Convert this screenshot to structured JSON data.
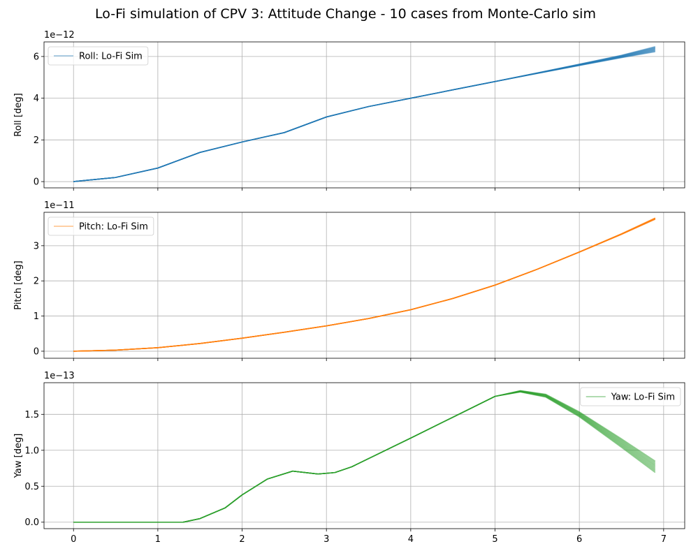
{
  "figure": {
    "title": "Lo-Fi simulation of CPV 3: Attitude Change - 10 cases from Monte-Carlo sim"
  },
  "chart_data": [
    {
      "type": "line",
      "title": "",
      "xlabel": "",
      "ylabel": "Roll [deg]",
      "exponent_label": "1e−12",
      "scale": 1e-12,
      "xlim": [
        -0.35,
        7.25
      ],
      "ylim": [
        -0.3,
        6.7
      ],
      "xticks": [
        0,
        1,
        2,
        3,
        4,
        5,
        6,
        7
      ],
      "xtick_labels_visible": false,
      "yticks": [
        0,
        2,
        4,
        6
      ],
      "grid": true,
      "legend": {
        "placement": "top-left",
        "entries": [
          "Roll: Lo-Fi Sim"
        ]
      },
      "color": "#1f77b4",
      "series": [
        {
          "name": "Roll: Lo-Fi Sim",
          "x": [
            0,
            0.5,
            1,
            1.5,
            2,
            2.5,
            3,
            3.5,
            4,
            4.5,
            5,
            5.5,
            6,
            6.5,
            6.9
          ],
          "values": [
            0,
            0.2,
            0.65,
            1.4,
            1.9,
            2.35,
            3.1,
            3.6,
            4.0,
            4.4,
            4.8,
            5.2,
            5.6,
            6.0,
            6.35
          ]
        }
      ],
      "spread": [
        0,
        0,
        0,
        0,
        0,
        0,
        0,
        0,
        0,
        0,
        0,
        0.03,
        0.07,
        0.12,
        0.25
      ]
    },
    {
      "type": "line",
      "title": "",
      "xlabel": "",
      "ylabel": "Pitch [deg]",
      "exponent_label": "1e−11",
      "scale": 1e-11,
      "xlim": [
        -0.35,
        7.25
      ],
      "ylim": [
        -0.2,
        3.95
      ],
      "xticks": [
        0,
        1,
        2,
        3,
        4,
        5,
        6,
        7
      ],
      "xtick_labels_visible": false,
      "yticks": [
        0,
        1,
        2,
        3
      ],
      "grid": true,
      "legend": {
        "placement": "top-left",
        "entries": [
          "Pitch: Lo-Fi Sim"
        ]
      },
      "color": "#ff7f0e",
      "series": [
        {
          "name": "Pitch: Lo-Fi Sim",
          "x": [
            0,
            0.5,
            1,
            1.5,
            2,
            2.5,
            3,
            3.5,
            4,
            4.5,
            5,
            5.5,
            6,
            6.5,
            6.9
          ],
          "values": [
            0,
            0.03,
            0.1,
            0.22,
            0.37,
            0.54,
            0.72,
            0.93,
            1.18,
            1.5,
            1.88,
            2.33,
            2.82,
            3.33,
            3.77
          ]
        }
      ],
      "spread": [
        0,
        0,
        0,
        0,
        0,
        0,
        0,
        0,
        0,
        0,
        0,
        0,
        0.01,
        0.02,
        0.04
      ]
    },
    {
      "type": "line",
      "title": "",
      "xlabel": "",
      "ylabel": "Yaw [deg]",
      "exponent_label": "1e−13",
      "scale": 1e-13,
      "xlim": [
        -0.35,
        7.25
      ],
      "ylim": [
        -0.09,
        1.94
      ],
      "xticks": [
        0,
        1,
        2,
        3,
        4,
        5,
        6,
        7
      ],
      "xtick_labels_visible": true,
      "yticks": [
        0.0,
        0.5,
        1.0,
        1.5
      ],
      "ytick_labels": [
        "0.0",
        "0.5",
        "1.0",
        "1.5"
      ],
      "grid": true,
      "legend": {
        "placement": "top-right",
        "entries": [
          "Yaw: Lo-Fi Sim"
        ]
      },
      "color": "#2ca02c",
      "series": [
        {
          "name": "Yaw: Lo-Fi Sim",
          "x": [
            0,
            1.3,
            1.5,
            1.8,
            2.0,
            2.3,
            2.6,
            2.9,
            3.1,
            3.3,
            4.0,
            4.5,
            5.0,
            5.3,
            5.6,
            6.0,
            6.5,
            6.9
          ],
          "values": [
            0,
            0,
            0.05,
            0.2,
            0.38,
            0.6,
            0.71,
            0.67,
            0.69,
            0.77,
            1.17,
            1.46,
            1.75,
            1.82,
            1.76,
            1.5,
            1.1,
            0.77
          ]
        }
      ],
      "spread": [
        0,
        0,
        0,
        0,
        0,
        0,
        0,
        0,
        0,
        0,
        0,
        0,
        0,
        0.02,
        0.04,
        0.07,
        0.12,
        0.16
      ]
    }
  ]
}
